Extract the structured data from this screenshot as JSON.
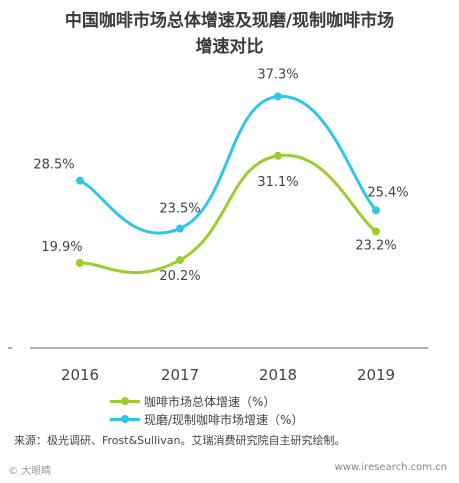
{
  "title_line1": "中国咖啡市场总体增速及现磨/现制咖啡市场",
  "title_line2": "增速对比",
  "chart_data": {
    "type": "line",
    "categories": [
      "2016",
      "2017",
      "2018",
      "2019"
    ],
    "series": [
      {
        "name": "咖啡市场总体增速（%）",
        "values": [
          19.9,
          20.2,
          31.1,
          23.2
        ],
        "labels": [
          "19.9%",
          "20.2%",
          "31.1%",
          "23.2%"
        ],
        "color": "#9ccc2e"
      },
      {
        "name": "现磨/现制咖啡市场增速（%）",
        "values": [
          28.5,
          23.5,
          37.3,
          25.4
        ],
        "labels": [
          "28.5%",
          "23.5%",
          "37.3%",
          "25.4%"
        ],
        "color": "#2ec6ea"
      }
    ],
    "ylim": [
      0,
      40
    ],
    "grid": false,
    "legend": "bottom"
  },
  "source": "来源：极光调研、Frost&Sullivan。艾瑞消费研究院自主研究绘制。",
  "watermark_left": "© 大眼睛",
  "watermark_right": "www.iresearch.com.cn"
}
